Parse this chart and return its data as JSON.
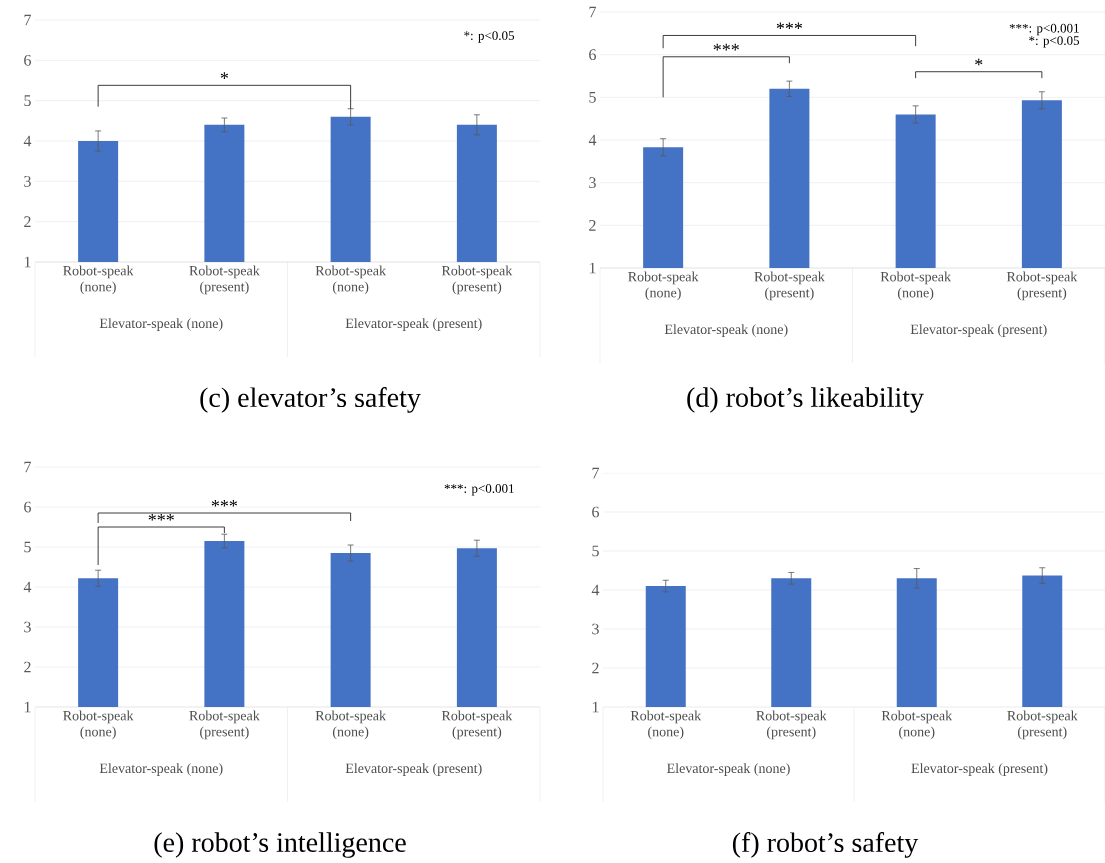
{
  "chart_data": [
    {
      "type": "bar",
      "title": "(c)  elevator’s safety",
      "categories": [
        "Robot-speak (none)",
        "Robot-speak (present)",
        "Robot-speak (none)",
        "Robot-speak (present)"
      ],
      "values": [
        4.0,
        4.4,
        4.6,
        4.4
      ],
      "errors": [
        0.25,
        0.17,
        0.2,
        0.25
      ],
      "color": "#4472c4",
      "ylim": [
        1,
        7
      ],
      "yticks": [
        1,
        2,
        3,
        4,
        5,
        6,
        7
      ],
      "grid": "y",
      "annotations": [
        "*",
        "*: p<0.05",
        "Elevator-speak (none)",
        "Elevator-speak (present)"
      ]
    },
    {
      "type": "bar",
      "title": "(d)  robot’s likeability",
      "categories": [
        "Robot-speak (none)",
        "Robot-speak (present)",
        "Robot-speak (none)",
        "Robot-speak (present)"
      ],
      "values": [
        3.83,
        5.2,
        4.6,
        4.93
      ],
      "errors": [
        0.2,
        0.18,
        0.2,
        0.2
      ],
      "color": "#4472c4",
      "ylim": [
        1,
        7
      ],
      "yticks": [
        1,
        2,
        3,
        4,
        5,
        6,
        7
      ],
      "grid": "y",
      "annotations": [
        "***",
        "***",
        "*",
        "***: p<0.001",
        "*: p<0.05",
        "Elevator-speak (none)",
        "Elevator-speak (present)"
      ]
    },
    {
      "type": "bar",
      "title": "(e)  robot’s intelligence",
      "categories": [
        "Robot-speak (none)",
        "Robot-speak (present)",
        "Robot-speak (none)",
        "Robot-speak (present)"
      ],
      "values": [
        4.22,
        5.15,
        4.85,
        4.97
      ],
      "errors": [
        0.2,
        0.17,
        0.2,
        0.2
      ],
      "color": "#4472c4",
      "ylim": [
        1,
        7
      ],
      "yticks": [
        1,
        2,
        3,
        4,
        5,
        6,
        7
      ],
      "grid": "y",
      "annotations": [
        "***",
        "***",
        "***: p<0.001",
        "Elevator-speak (none)",
        "Elevator-speak (present)"
      ]
    },
    {
      "type": "bar",
      "title": "(f)  robot’s safety",
      "categories": [
        "Robot-speak (none)",
        "Robot-speak (present)",
        "Robot-speak (none)",
        "Robot-speak (present)"
      ],
      "values": [
        4.1,
        4.3,
        4.3,
        4.37
      ],
      "errors": [
        0.15,
        0.15,
        0.25,
        0.2
      ],
      "color": "#4472c4",
      "ylim": [
        1,
        7
      ],
      "yticks": [
        1,
        2,
        3,
        4,
        5,
        6,
        7
      ],
      "grid": "y",
      "annotations": [
        "Elevator-speak (none)",
        "Elevator-speak (present)"
      ]
    }
  ]
}
